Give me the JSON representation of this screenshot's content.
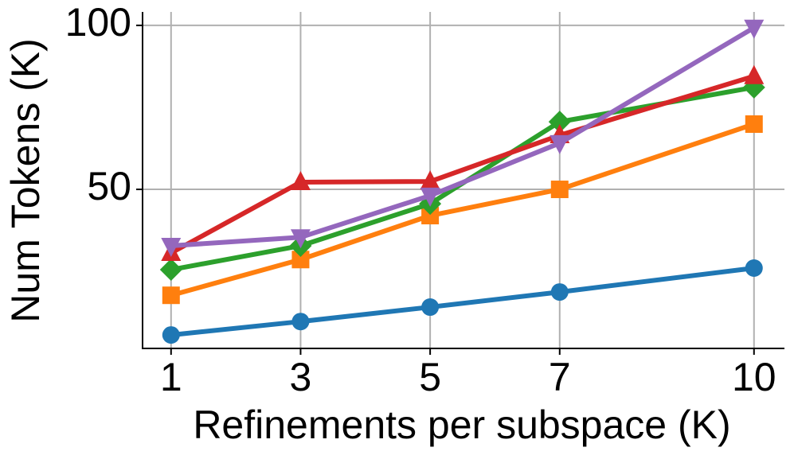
{
  "chart_data": {
    "type": "line",
    "x_label": "Refinements per subspace (K)",
    "y_label": "Num Tokens (K)",
    "x": [
      1,
      3,
      5,
      7,
      10
    ],
    "xlim": [
      0.56,
      10.47
    ],
    "xticks": [
      1,
      3,
      5,
      7,
      10
    ],
    "ylim": [
      1.5,
      104.1
    ],
    "yticks": [
      50,
      100
    ],
    "grid": true,
    "series": [
      {
        "color": "#1f77b4",
        "marker": "circle",
        "values": [
          5.6,
          9.7,
          14.1,
          18.7,
          26
        ]
      },
      {
        "color": "#ff7f0e",
        "marker": "square",
        "values": [
          17.7,
          28.6,
          42,
          50,
          69.9
        ]
      },
      {
        "color": "#2ca02c",
        "marker": "diamond",
        "values": [
          25.5,
          32.8,
          45.6,
          70.6,
          81.1
        ]
      },
      {
        "color": "#d62728",
        "marker": "triangle-up",
        "values": [
          30.6,
          52.2,
          52.4,
          66.5,
          84.5
        ]
      },
      {
        "color": "#9467bd",
        "marker": "triangle-down",
        "values": [
          32.8,
          35.4,
          48.1,
          64.1,
          99.3
        ]
      }
    ]
  }
}
